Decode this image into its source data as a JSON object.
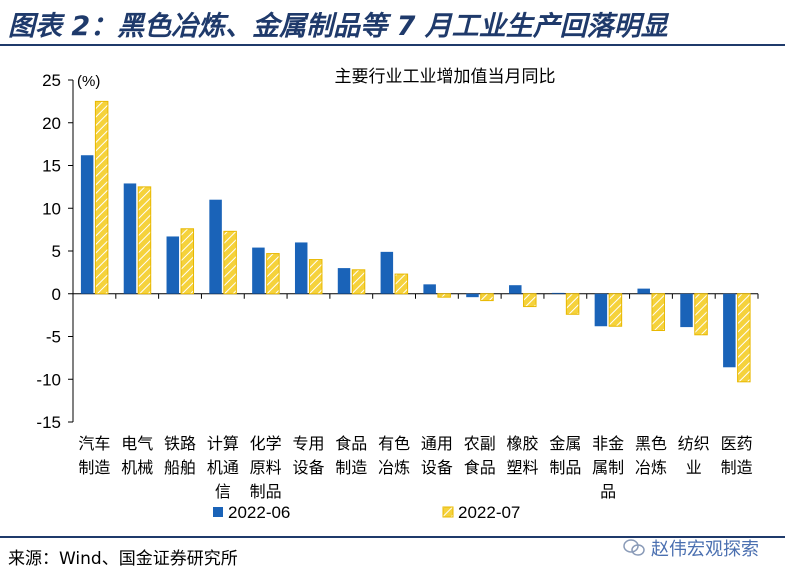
{
  "title": "图表 2：黑色冶炼、金属制品等 7 月工业生产回落明显",
  "source": "来源：Wind、国金证券研究所",
  "watermark": "赵伟宏观探索",
  "colors": {
    "title": "#1f3a6b",
    "series1": "#1a63b8",
    "series2": "#f5d23c",
    "series2_stripe": "#ffffff",
    "watermark": "#4a6fb0"
  },
  "chart_data": {
    "type": "bar",
    "title": "主要行业工业增加值当月同比",
    "ylabel": "(%)",
    "ylim": [
      -15,
      25
    ],
    "yticks": [
      25,
      20,
      15,
      10,
      5,
      0,
      -5,
      -10,
      -15
    ],
    "categories": [
      [
        "汽车",
        "制造"
      ],
      [
        "电气",
        "机械"
      ],
      [
        "铁路",
        "船舶"
      ],
      [
        "计算",
        "机通",
        "信"
      ],
      [
        "化学",
        "原料",
        "制品"
      ],
      [
        "专用",
        "设备"
      ],
      [
        "食品",
        "制造"
      ],
      [
        "有色",
        "冶炼"
      ],
      [
        "通用",
        "设备"
      ],
      [
        "农副",
        "食品"
      ],
      [
        "橡胶",
        "塑料"
      ],
      [
        "金属",
        "制品"
      ],
      [
        "非金",
        "属制",
        "品"
      ],
      [
        "黑色",
        "冶炼"
      ],
      [
        "纺织",
        "业"
      ],
      [
        "医药",
        "制造"
      ]
    ],
    "series": [
      {
        "name": "2022-06",
        "values": [
          16.2,
          12.9,
          6.7,
          11.0,
          5.4,
          6.0,
          3.0,
          4.9,
          1.1,
          -0.4,
          1.0,
          0.1,
          -3.8,
          0.6,
          -3.9,
          -8.6
        ]
      },
      {
        "name": "2022-07",
        "values": [
          22.5,
          12.5,
          7.6,
          7.3,
          4.7,
          4.0,
          2.8,
          2.3,
          -0.4,
          -0.8,
          -1.5,
          -2.4,
          -3.8,
          -4.3,
          -4.8,
          -10.3
        ]
      }
    ],
    "grid": false,
    "legend": "bottom"
  }
}
